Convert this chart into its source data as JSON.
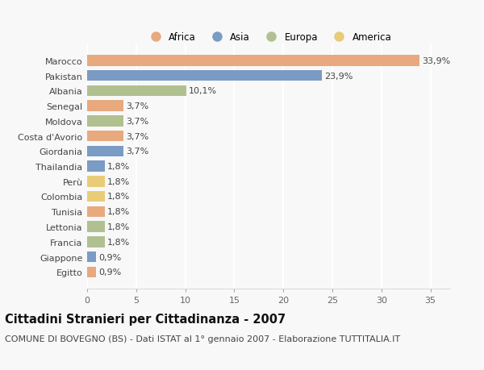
{
  "countries": [
    "Egitto",
    "Giappone",
    "Francia",
    "Lettonia",
    "Tunisia",
    "Colombia",
    "Perù",
    "Thailandia",
    "Giordania",
    "Costa d'Avorio",
    "Moldova",
    "Senegal",
    "Albania",
    "Pakistan",
    "Marocco"
  ],
  "values": [
    0.9,
    0.9,
    1.8,
    1.8,
    1.8,
    1.8,
    1.8,
    1.8,
    3.7,
    3.7,
    3.7,
    3.7,
    10.1,
    23.9,
    33.9
  ],
  "continents": [
    "Africa",
    "Asia",
    "Europa",
    "Europa",
    "Africa",
    "America",
    "America",
    "Asia",
    "Asia",
    "Africa",
    "Europa",
    "Africa",
    "Europa",
    "Asia",
    "Africa"
  ],
  "continent_colors": {
    "Africa": "#E8A97E",
    "Asia": "#7A9BC4",
    "Europa": "#B0C090",
    "America": "#E8CC78"
  },
  "legend_order": [
    "Africa",
    "Asia",
    "Europa",
    "America"
  ],
  "title": "Cittadini Stranieri per Cittadinanza - 2007",
  "subtitle": "COMUNE DI BOVEGNO (BS) - Dati ISTAT al 1° gennaio 2007 - Elaborazione TUTTITALIA.IT",
  "xlim": [
    0,
    37
  ],
  "xticks": [
    0,
    5,
    10,
    15,
    20,
    25,
    30,
    35
  ],
  "background_color": "#f8f8f8",
  "plot_bg_color": "#f8f8f8",
  "grid_color": "#ffffff",
  "bar_height": 0.72,
  "title_fontsize": 10.5,
  "subtitle_fontsize": 8,
  "label_fontsize": 8,
  "tick_fontsize": 8,
  "legend_fontsize": 8.5
}
